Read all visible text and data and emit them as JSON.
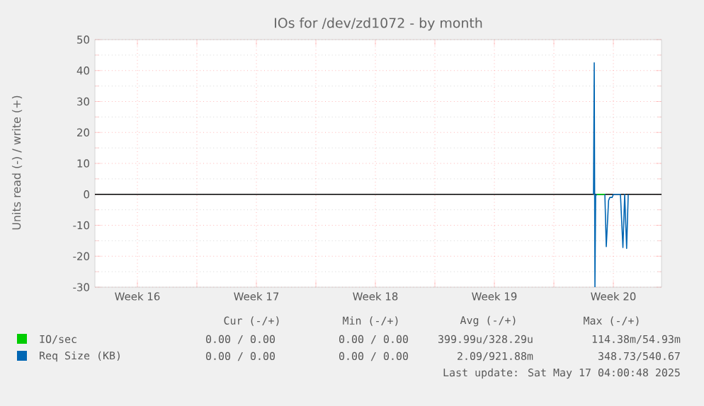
{
  "chart_data": {
    "type": "line",
    "title": "IOs for /dev/zd1072 - by month",
    "ylabel": "Units read (-) / write (+)",
    "xlim": [
      "2025-04-15T00:00",
      "2025-05-18T08:00"
    ],
    "ylim": [
      -30,
      50
    ],
    "xticks": [
      {
        "value": "2025-04-17T12:00",
        "label": "Week 16"
      },
      {
        "value": "2025-04-21",
        "label": null
      },
      {
        "value": "2025-04-24T12:00",
        "label": "Week 17"
      },
      {
        "value": "2025-04-28",
        "label": null
      },
      {
        "value": "2025-05-01T12:00",
        "label": "Week 18"
      },
      {
        "value": "2025-05-05",
        "label": null
      },
      {
        "value": "2025-05-08T12:00",
        "label": "Week 19"
      },
      {
        "value": "2025-05-12",
        "label": null
      },
      {
        "value": "2025-05-15T12:00",
        "label": "Week 20"
      }
    ],
    "yticks": [
      -30,
      -20,
      -10,
      0,
      10,
      20,
      30,
      40,
      50
    ],
    "grid": true,
    "legend": "bottom",
    "line_style": "solid",
    "marker": "none",
    "series": [
      {
        "name": "IO/sec",
        "color": "#00cc00",
        "x": [
          "2025-05-14T12:30",
          "2025-05-15T00:00"
        ],
        "values": [
          0,
          0
        ]
      },
      {
        "name": "Req Size (KB)",
        "color": "#0066b3",
        "x": [
          "2025-05-14T08:00",
          "2025-05-14T09:00",
          "2025-05-14T10:00",
          "2025-05-14T11:00",
          "2025-05-14T12:30",
          "2025-05-15T00:00",
          "2025-05-15T02:00",
          "2025-05-15T05:15",
          "2025-05-15T07:00",
          "2025-05-15T10:15",
          "2025-05-15T12:00",
          "2025-05-15T22:00",
          "2025-05-16T01:30",
          "2025-05-16T04:00",
          "2025-05-16T06:45",
          "2025-05-16T09:00"
        ],
        "values": [
          0,
          42.5,
          -30,
          -0.5,
          0,
          0,
          -16.9,
          -2,
          -1,
          -1,
          0,
          0,
          -17.2,
          0,
          -17.5,
          0
        ]
      }
    ],
    "ref_lines": [
      {
        "axis": "y",
        "value": 0,
        "color": "#000000"
      }
    ],
    "annotations": [
      "Cur (-/+)",
      "Min (-/+)",
      "Avg (-/+)",
      "Max (-/+)",
      "0.00 / 0.00",
      "0.00 / 0.00",
      "399.99u/328.29u",
      "114.38m/54.93m",
      "0.00 / 0.00",
      "0.00 / 0.00",
      "2.09/921.88m",
      "348.73/540.67",
      "Last update: Sat May 17 04:00:48 2025"
    ]
  }
}
